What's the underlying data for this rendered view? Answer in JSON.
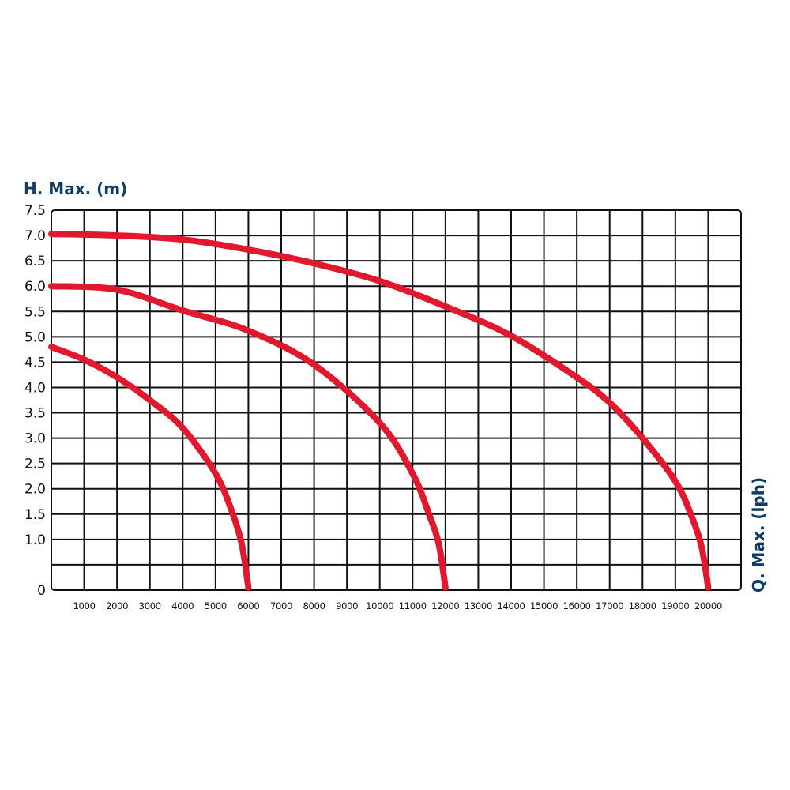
{
  "chart_data": {
    "type": "line",
    "title": "",
    "ylabel": "H. Max. (m)",
    "xlabel": "Q. Max. (lph)",
    "xlim": [
      0,
      21000
    ],
    "ylim": [
      0,
      7.5
    ],
    "grid": true,
    "x_ticks": [
      1000,
      2000,
      3000,
      4000,
      5000,
      6000,
      7000,
      8000,
      9000,
      10000,
      11000,
      12000,
      13000,
      14000,
      15000,
      16000,
      17000,
      18000,
      19000,
      20000
    ],
    "x_tick_labels": [
      "1000",
      "2000",
      "3000",
      "4000",
      "5000",
      "6000",
      "7000",
      "8000",
      "9000",
      "10000",
      "11000",
      "12000",
      "13000",
      "14000",
      "15000",
      "16000",
      "17000",
      "18000",
      "19000",
      "20000"
    ],
    "highlighted_x_ticks": [
      "6000",
      "12000",
      "20000"
    ],
    "y_tick_labels": [
      "0",
      "1.0",
      "1.5",
      "2.0",
      "2.5",
      "3.0",
      "3.5",
      "4.0",
      "4.5",
      "5.0",
      "5.5",
      "6.0",
      "6.5",
      "7.0",
      "7.5"
    ],
    "y_ticks": [
      0,
      1.0,
      1.5,
      2.0,
      2.5,
      3.0,
      3.5,
      4.0,
      4.5,
      5.0,
      5.5,
      6.0,
      6.5,
      7.0,
      7.5
    ],
    "colors": {
      "curve": "#e0192f",
      "highlight_label": "#c0172b",
      "title": "#0f3b66",
      "grid": "#111111"
    },
    "series": [
      {
        "x": [
          0,
          1000,
          2000,
          3000,
          4000,
          5000,
          5500,
          5800,
          6000
        ],
        "y": [
          4.8,
          4.55,
          4.2,
          3.75,
          3.2,
          2.3,
          1.55,
          0.9,
          0.05
        ]
      },
      {
        "x": [
          0,
          2000,
          4000,
          6000,
          8000,
          10000,
          11000,
          11500,
          11800,
          12000
        ],
        "y": [
          6.0,
          5.93,
          5.52,
          5.12,
          4.45,
          3.3,
          2.3,
          1.5,
          0.9,
          0.05
        ]
      },
      {
        "x": [
          0,
          2000,
          4000,
          6000,
          8000,
          10000,
          12000,
          14000,
          16000,
          17000,
          18000,
          19000,
          19500,
          19800,
          20000
        ],
        "y": [
          7.03,
          7.0,
          6.92,
          6.72,
          6.45,
          6.1,
          5.6,
          5.02,
          4.2,
          3.7,
          3.0,
          2.15,
          1.45,
          0.85,
          0.05
        ]
      }
    ]
  }
}
